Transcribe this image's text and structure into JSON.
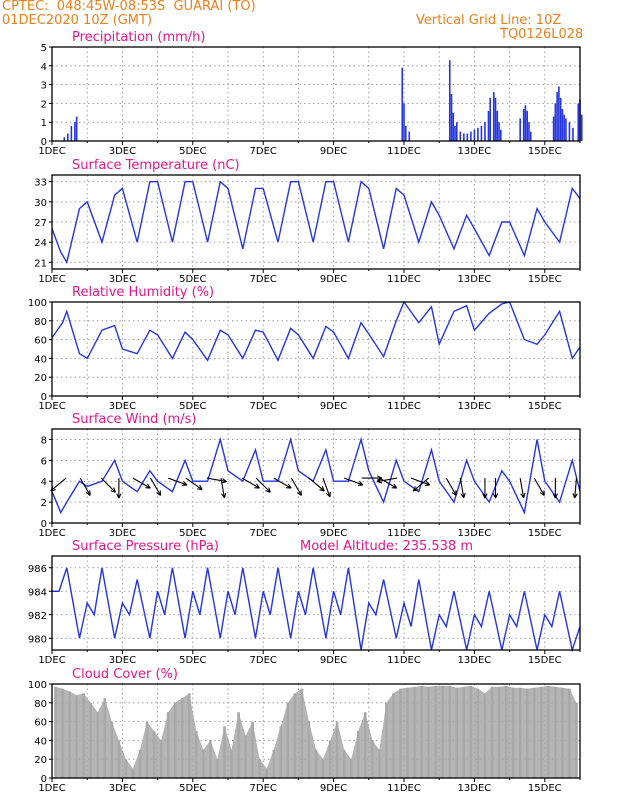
{
  "header": {
    "line1": "CPTEC:  048:45W-08:53S  GUARAI (TO)",
    "line2": "01DEC2020 10Z (GMT)",
    "right1": "Vertical Grid Line: 10Z",
    "right2": "TQ0126L028"
  },
  "colors": {
    "header": "#e8801c",
    "title": "#e0188c",
    "series": "#2535e0",
    "cloud": "#a8a8a8",
    "arrow": "#000000"
  },
  "x_ticks": [
    "1DEC",
    "3DEC",
    "5DEC",
    "7DEC",
    "9DEC",
    "11DEC",
    "13DEC",
    "15DEC"
  ],
  "chart_data": [
    {
      "type": "bar",
      "title": "Precipitation (mm/h)",
      "x_unit": "days since 01DEC2020 10Z",
      "ylim": [
        0,
        5
      ],
      "yticks": [
        0,
        1,
        2,
        3,
        4,
        5
      ],
      "xlim": [
        0,
        15
      ],
      "x": [
        0.35,
        0.45,
        0.55,
        0.65,
        0.7,
        9.95,
        10.0,
        10.05,
        10.15,
        11.3,
        11.35,
        11.4,
        11.45,
        11.5,
        11.6,
        11.7,
        11.8,
        11.9,
        12.0,
        12.1,
        12.2,
        12.3,
        12.4,
        12.45,
        12.55,
        12.6,
        12.65,
        12.7,
        12.75,
        13.3,
        13.4,
        13.45,
        13.5,
        13.55,
        13.6,
        14.25,
        14.3,
        14.35,
        14.4,
        14.45,
        14.5,
        14.55,
        14.6,
        14.7,
        14.8,
        14.95,
        15.0,
        15.05
      ],
      "values": [
        0.2,
        0.4,
        0.8,
        1.0,
        1.3,
        3.9,
        2.0,
        0.8,
        0.5,
        4.3,
        2.5,
        1.5,
        0.8,
        1.0,
        0.5,
        0.4,
        0.4,
        0.5,
        0.6,
        0.7,
        0.8,
        1.0,
        1.6,
        2.3,
        2.6,
        2.3,
        1.6,
        1.0,
        0.6,
        1.2,
        1.7,
        1.9,
        1.6,
        1.0,
        0.5,
        1.3,
        2.0,
        2.6,
        2.9,
        2.3,
        1.7,
        1.4,
        1.2,
        1.0,
        0.7,
        2.0,
        2.2,
        1.4
      ]
    },
    {
      "type": "line",
      "title": "Surface Temperature (nC)",
      "x_unit": "days since 01DEC2020 10Z",
      "ylim": [
        20,
        34
      ],
      "yticks": [
        21,
        24,
        27,
        30,
        33
      ],
      "xlim": [
        0,
        15
      ],
      "x": [
        0,
        0.25,
        0.42,
        0.78,
        1.0,
        1.42,
        1.78,
        2.0,
        2.42,
        2.78,
        3.0,
        3.42,
        3.78,
        4.0,
        4.42,
        4.78,
        5.0,
        5.42,
        5.78,
        6.0,
        6.42,
        6.78,
        7.0,
        7.42,
        7.78,
        8.0,
        8.42,
        8.78,
        9.0,
        9.42,
        9.78,
        10.0,
        10.42,
        10.78,
        11.0,
        11.42,
        11.78,
        12.0,
        12.42,
        12.78,
        13.0,
        13.42,
        13.78,
        14.0,
        14.42,
        14.78,
        15.0
      ],
      "values": [
        26,
        22.5,
        21,
        29,
        30,
        24,
        31,
        32,
        24,
        33,
        33,
        24,
        33,
        33,
        24,
        33,
        32,
        23,
        32,
        32,
        24,
        33,
        33,
        24,
        33,
        33,
        24,
        33,
        32,
        23,
        32,
        31,
        24,
        30,
        28,
        23,
        28,
        26,
        22,
        27,
        27,
        22,
        29,
        27,
        24,
        32,
        30.5
      ]
    },
    {
      "type": "line",
      "title": "Relative Humidity (%)",
      "x_unit": "days since 01DEC2020 10Z",
      "ylim": [
        0,
        100
      ],
      "yticks": [
        0,
        20,
        40,
        60,
        80,
        100
      ],
      "xlim": [
        0,
        15
      ],
      "x": [
        0,
        0.3,
        0.42,
        0.78,
        1.0,
        1.42,
        1.78,
        2.0,
        2.42,
        2.78,
        3.0,
        3.42,
        3.78,
        4.0,
        4.42,
        4.78,
        5.0,
        5.42,
        5.78,
        6.0,
        6.42,
        6.78,
        7.0,
        7.42,
        7.78,
        8.0,
        8.42,
        8.78,
        9.0,
        9.42,
        9.78,
        10.0,
        10.42,
        10.78,
        11.0,
        11.42,
        11.78,
        12.0,
        12.42,
        12.78,
        13.0,
        13.42,
        13.78,
        14.0,
        14.42,
        14.78,
        15.0
      ],
      "values": [
        62,
        78,
        90,
        45,
        40,
        70,
        75,
        50,
        45,
        70,
        65,
        40,
        68,
        60,
        38,
        70,
        65,
        40,
        70,
        68,
        38,
        72,
        65,
        40,
        74,
        68,
        40,
        78,
        66,
        42,
        80,
        100,
        78,
        95,
        55,
        90,
        96,
        70,
        88,
        98,
        100,
        60,
        55,
        65,
        90,
        40,
        52
      ]
    },
    {
      "type": "line",
      "title": "Surface Wind (m/s)",
      "x_unit": "days since 01DEC2020 10Z",
      "ylim": [
        0,
        9
      ],
      "yticks": [
        0,
        2,
        4,
        6,
        8
      ],
      "xlim": [
        0,
        15
      ],
      "x": [
        0,
        0.25,
        0.42,
        0.78,
        1.0,
        1.42,
        1.78,
        2.0,
        2.42,
        2.78,
        3.0,
        3.42,
        3.78,
        4.0,
        4.42,
        4.78,
        5.0,
        5.42,
        5.78,
        6.0,
        6.42,
        6.78,
        7.0,
        7.42,
        7.78,
        8.0,
        8.42,
        8.78,
        9.0,
        9.42,
        9.78,
        10.0,
        10.42,
        10.78,
        11.0,
        11.42,
        11.78,
        12.0,
        12.42,
        12.78,
        13.0,
        13.42,
        13.78,
        14.0,
        14.42,
        14.78,
        15.0
      ],
      "values": [
        3,
        1,
        2,
        4,
        3.5,
        4,
        6,
        4,
        3,
        5,
        4,
        3,
        6,
        4,
        4,
        8,
        5,
        4,
        7,
        4,
        4,
        8,
        5,
        4,
        7,
        4,
        4,
        8,
        5,
        2,
        6,
        4,
        3,
        7,
        4,
        2,
        6,
        4,
        2,
        5,
        4,
        1,
        8,
        4,
        2,
        6,
        3
      ],
      "arrows": [
        [
          0.4,
          140
        ],
        [
          0.8,
          60
        ],
        [
          1.4,
          45
        ],
        [
          1.9,
          90
        ],
        [
          2.3,
          30
        ],
        [
          2.8,
          60
        ],
        [
          3.3,
          20
        ],
        [
          3.8,
          35
        ],
        [
          4.4,
          10
        ],
        [
          4.8,
          80
        ],
        [
          5.4,
          30
        ],
        [
          5.8,
          45
        ],
        [
          6.3,
          30
        ],
        [
          6.8,
          60
        ],
        [
          7.3,
          40
        ],
        [
          7.7,
          70
        ],
        [
          8.3,
          20
        ],
        [
          8.8,
          0
        ],
        [
          9.3,
          30
        ],
        [
          9.8,
          170
        ],
        [
          10.2,
          20
        ],
        [
          10.7,
          140
        ],
        [
          11.2,
          60
        ],
        [
          11.6,
          80
        ],
        [
          12.3,
          90
        ],
        [
          12.6,
          90
        ],
        [
          13.3,
          80
        ],
        [
          13.7,
          60
        ],
        [
          14.3,
          90
        ],
        [
          14.9,
          95
        ]
      ]
    },
    {
      "type": "line",
      "title": "Surface Pressure (hPa)",
      "annotation": "Model Altitude: 235.538 m",
      "x_unit": "days since 01DEC2020 10Z",
      "ylim": [
        979,
        987
      ],
      "yticks": [
        980,
        982,
        984,
        986
      ],
      "xlim": [
        0,
        15
      ],
      "x": [
        0,
        0.2,
        0.42,
        0.78,
        1.0,
        1.2,
        1.42,
        1.78,
        2.0,
        2.2,
        2.42,
        2.78,
        3.0,
        3.2,
        3.42,
        3.78,
        4.0,
        4.2,
        4.42,
        4.78,
        5.0,
        5.2,
        5.42,
        5.78,
        6.0,
        6.2,
        6.42,
        6.78,
        7.0,
        7.2,
        7.42,
        7.78,
        8.0,
        8.2,
        8.42,
        8.78,
        9.0,
        9.2,
        9.42,
        9.78,
        10.0,
        10.2,
        10.42,
        10.78,
        11.0,
        11.2,
        11.42,
        11.78,
        12.0,
        12.2,
        12.42,
        12.78,
        13.0,
        13.2,
        13.42,
        13.78,
        14.0,
        14.2,
        14.42,
        14.78,
        15.0
      ],
      "values": [
        984,
        984,
        986,
        980,
        983,
        982,
        986,
        980,
        983,
        982,
        985,
        980,
        984,
        982,
        986,
        980,
        984,
        982,
        986,
        980,
        984,
        982,
        986,
        980,
        984,
        982,
        986,
        980,
        984,
        982,
        986,
        980,
        984,
        982,
        986,
        979,
        983,
        982,
        985,
        980,
        983,
        981,
        985,
        979,
        982,
        981,
        984,
        979,
        982,
        981,
        984,
        979,
        982,
        981,
        984,
        979,
        982,
        981,
        984,
        979,
        981
      ]
    },
    {
      "type": "bar",
      "title": "Cloud Cover (%)",
      "x_unit": "days since 01DEC2020 10Z",
      "ylim": [
        0,
        100
      ],
      "yticks": [
        0,
        20,
        40,
        60,
        80,
        100
      ],
      "xlim": [
        0,
        15
      ],
      "x": [
        0.1,
        0.3,
        0.5,
        0.7,
        0.9,
        1.1,
        1.3,
        1.5,
        1.7,
        1.9,
        2.1,
        2.3,
        2.5,
        2.7,
        2.9,
        3.1,
        3.3,
        3.5,
        3.7,
        3.9,
        4.1,
        4.3,
        4.5,
        4.7,
        4.9,
        5.1,
        5.3,
        5.5,
        5.7,
        5.9,
        6.1,
        6.3,
        6.5,
        6.7,
        6.9,
        7.1,
        7.3,
        7.5,
        7.7,
        7.9,
        8.1,
        8.3,
        8.5,
        8.7,
        8.9,
        9.1,
        9.3,
        9.5,
        9.7,
        9.9,
        10.1,
        10.3,
        10.5,
        10.7,
        10.9,
        11.1,
        11.3,
        11.5,
        11.7,
        11.9,
        12.1,
        12.3,
        12.5,
        12.7,
        12.9,
        13.1,
        13.3,
        13.5,
        13.7,
        13.9,
        14.1,
        14.3,
        14.5,
        14.7,
        14.9
      ],
      "values": [
        97,
        95,
        92,
        88,
        90,
        80,
        70,
        85,
        60,
        40,
        20,
        10,
        30,
        60,
        50,
        40,
        70,
        80,
        85,
        90,
        50,
        30,
        40,
        20,
        55,
        30,
        70,
        45,
        60,
        20,
        10,
        30,
        55,
        80,
        90,
        95,
        60,
        30,
        20,
        40,
        60,
        30,
        20,
        50,
        70,
        40,
        30,
        80,
        90,
        95,
        96,
        97,
        98,
        97,
        98,
        98,
        98,
        96,
        97,
        98,
        95,
        90,
        97,
        97,
        98,
        96,
        96,
        95,
        96,
        97,
        98,
        97,
        96,
        95,
        80
      ]
    }
  ]
}
